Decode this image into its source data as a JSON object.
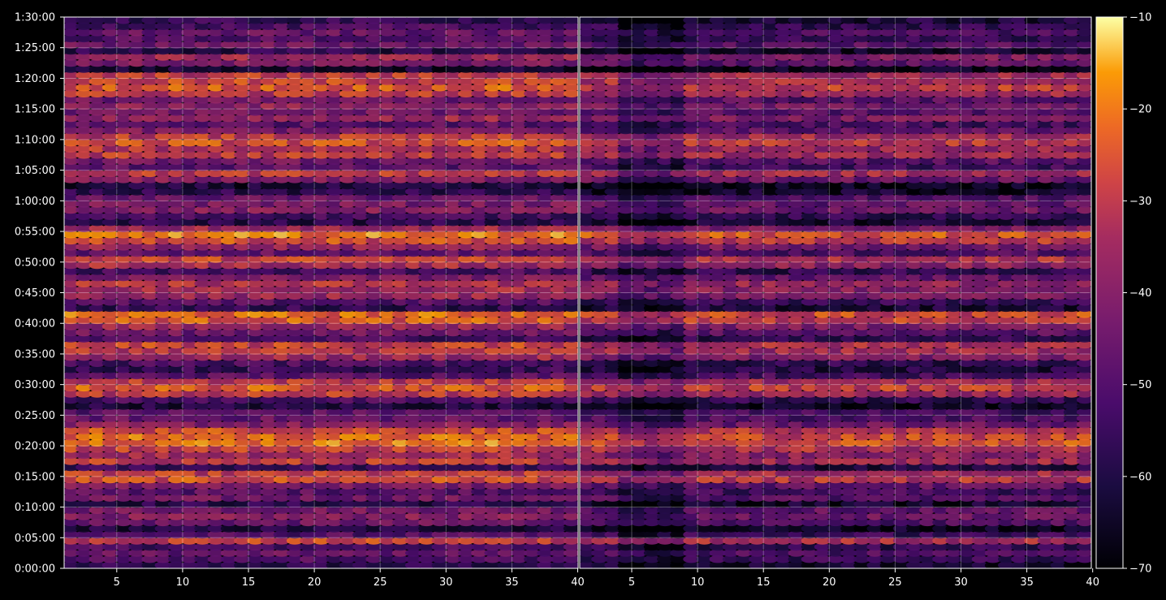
{
  "chart_data": {
    "type": "heatmap",
    "title": "",
    "xlabel": "",
    "ylabel": "",
    "colormap": "inferno",
    "background": "#000000",
    "grid": true,
    "panels": [
      {
        "x_range": [
          1,
          40
        ],
        "x_ticks": [
          "5",
          "10",
          "15",
          "20",
          "25",
          "30",
          "35",
          "40"
        ]
      },
      {
        "x_range": [
          0,
          40
        ],
        "x_ticks": [
          "5",
          "10",
          "15",
          "20",
          "25",
          "30",
          "35",
          "40"
        ]
      }
    ],
    "y_range_seconds": [
      0,
      5400
    ],
    "y_ticks": [
      "0:00:00",
      "0:05:00",
      "0:10:00",
      "0:15:00",
      "0:20:00",
      "0:25:00",
      "0:30:00",
      "0:35:00",
      "0:40:00",
      "0:45:00",
      "0:50:00",
      "0:55:00",
      "1:00:00",
      "1:05:00",
      "1:10:00",
      "1:15:00",
      "1:20:00",
      "1:25:00",
      "1:30:00"
    ],
    "colorbar": {
      "range": [
        -70,
        -10
      ],
      "ticks": [
        "−70",
        "−60",
        "−50",
        "−40",
        "−30",
        "−20",
        "−10"
      ]
    },
    "row_intensity_profile": [
      {
        "t": "0:00:30",
        "level": -58
      },
      {
        "t": "0:01:30",
        "level": -50
      },
      {
        "t": "0:02:30",
        "level": -46
      },
      {
        "t": "0:03:30",
        "level": -52
      },
      {
        "t": "0:04:30",
        "level": -28
      },
      {
        "t": "0:05:30",
        "level": -50
      },
      {
        "t": "0:06:30",
        "level": -60
      },
      {
        "t": "0:07:30",
        "level": -45
      },
      {
        "t": "0:08:30",
        "level": -40
      },
      {
        "t": "0:09:30",
        "level": -42
      },
      {
        "t": "0:10:30",
        "level": -58
      },
      {
        "t": "0:11:30",
        "level": -44
      },
      {
        "t": "0:12:30",
        "level": -48
      },
      {
        "t": "0:13:30",
        "level": -42
      },
      {
        "t": "0:14:30",
        "level": -26
      },
      {
        "t": "0:15:30",
        "level": -30
      },
      {
        "t": "0:16:30",
        "level": -55
      },
      {
        "t": "0:17:30",
        "level": -30
      },
      {
        "t": "0:18:30",
        "level": -34
      },
      {
        "t": "0:19:30",
        "level": -28
      },
      {
        "t": "0:20:30",
        "level": -20
      },
      {
        "t": "0:21:30",
        "level": -22
      },
      {
        "t": "0:22:30",
        "level": -26
      },
      {
        "t": "0:23:30",
        "level": -40
      },
      {
        "t": "0:24:30",
        "level": -46
      },
      {
        "t": "0:25:30",
        "level": -48
      },
      {
        "t": "0:26:30",
        "level": -60
      },
      {
        "t": "0:27:30",
        "level": -52
      },
      {
        "t": "0:28:30",
        "level": -30
      },
      {
        "t": "0:29:30",
        "level": -24
      },
      {
        "t": "0:30:30",
        "level": -30
      },
      {
        "t": "0:31:30",
        "level": -48
      },
      {
        "t": "0:32:30",
        "level": -55
      },
      {
        "t": "0:33:30",
        "level": -52
      },
      {
        "t": "0:34:30",
        "level": -36
      },
      {
        "t": "0:35:30",
        "level": -30
      },
      {
        "t": "0:36:30",
        "level": -28
      },
      {
        "t": "0:37:30",
        "level": -52
      },
      {
        "t": "0:38:30",
        "level": -44
      },
      {
        "t": "0:39:30",
        "level": -36
      },
      {
        "t": "0:40:30",
        "level": -24
      },
      {
        "t": "0:41:30",
        "level": -22
      },
      {
        "t": "0:42:30",
        "level": -56
      },
      {
        "t": "0:43:30",
        "level": -50
      },
      {
        "t": "0:44:30",
        "level": -36
      },
      {
        "t": "0:45:30",
        "level": -34
      },
      {
        "t": "0:46:30",
        "level": -32
      },
      {
        "t": "0:47:30",
        "level": -42
      },
      {
        "t": "0:48:30",
        "level": -52
      },
      {
        "t": "0:49:30",
        "level": -34
      },
      {
        "t": "0:50:30",
        "level": -28
      },
      {
        "t": "0:51:30",
        "level": -46
      },
      {
        "t": "0:52:30",
        "level": -38
      },
      {
        "t": "0:53:30",
        "level": -26
      },
      {
        "t": "0:54:30",
        "level": -20
      },
      {
        "t": "0:55:30",
        "level": -36
      },
      {
        "t": "0:56:30",
        "level": -58
      },
      {
        "t": "0:57:30",
        "level": -52
      },
      {
        "t": "0:58:30",
        "level": -40
      },
      {
        "t": "0:59:30",
        "level": -42
      },
      {
        "t": "1:00:30",
        "level": -46
      },
      {
        "t": "1:01:30",
        "level": -58
      },
      {
        "t": "1:02:30",
        "level": -62
      },
      {
        "t": "1:03:30",
        "level": -40
      },
      {
        "t": "1:04:30",
        "level": -30
      },
      {
        "t": "1:05:30",
        "level": -48
      },
      {
        "t": "1:06:30",
        "level": -44
      },
      {
        "t": "1:07:30",
        "level": -30
      },
      {
        "t": "1:08:30",
        "level": -32
      },
      {
        "t": "1:09:30",
        "level": -26
      },
      {
        "t": "1:10:30",
        "level": -30
      },
      {
        "t": "1:11:30",
        "level": -42
      },
      {
        "t": "1:12:30",
        "level": -48
      },
      {
        "t": "1:13:30",
        "level": -36
      },
      {
        "t": "1:14:30",
        "level": -44
      },
      {
        "t": "1:15:30",
        "level": -38
      },
      {
        "t": "1:16:30",
        "level": -44
      },
      {
        "t": "1:17:30",
        "level": -30
      },
      {
        "t": "1:18:30",
        "level": -24
      },
      {
        "t": "1:19:30",
        "level": -28
      },
      {
        "t": "1:20:30",
        "level": -30
      },
      {
        "t": "1:21:30",
        "level": -62
      },
      {
        "t": "1:22:30",
        "level": -42
      },
      {
        "t": "1:23:30",
        "level": -36
      },
      {
        "t": "1:24:30",
        "level": -58
      },
      {
        "t": "1:25:30",
        "level": -44
      },
      {
        "t": "1:26:30",
        "level": -50
      },
      {
        "t": "1:27:30",
        "level": -46
      },
      {
        "t": "1:28:30",
        "level": -52
      },
      {
        "t": "1:29:30",
        "level": -56
      }
    ]
  }
}
